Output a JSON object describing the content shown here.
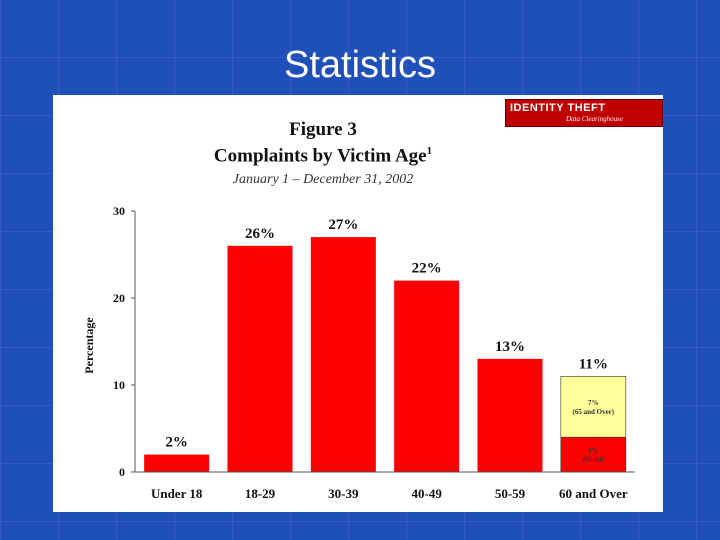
{
  "slide": {
    "title": "Statistics"
  },
  "logo": {
    "text": "IDENTITY THEFT",
    "subtext": "Data Clearinghouse"
  },
  "chart_data": {
    "type": "bar",
    "title": "Figure 3",
    "subtitle": "Complaints by Victim Age",
    "subtitle_footnote": "1",
    "date_range": "January 1 – December 31, 2002",
    "ylabel": "Percentage",
    "xlabel": "",
    "ylim": [
      0,
      30
    ],
    "yticks": [
      0,
      10,
      20,
      30
    ],
    "grid": false,
    "categories": [
      "Under 18",
      "18-29",
      "30-39",
      "40-49",
      "50-59",
      "60 and Over"
    ],
    "values": [
      2,
      26,
      27,
      22,
      13,
      11
    ],
    "value_labels": [
      "2%",
      "26%",
      "27%",
      "22%",
      "13%",
      "11%"
    ],
    "bar_color": "#ff0000",
    "breakdown": {
      "category": "60 and Over",
      "segments": [
        {
          "value": 4,
          "label": "4%",
          "sublabel": "(60-64)",
          "color": "#ff0000"
        },
        {
          "value": 7,
          "label": "7%",
          "sublabel": "(65 and Over)",
          "color": "#ffff99"
        }
      ]
    }
  }
}
